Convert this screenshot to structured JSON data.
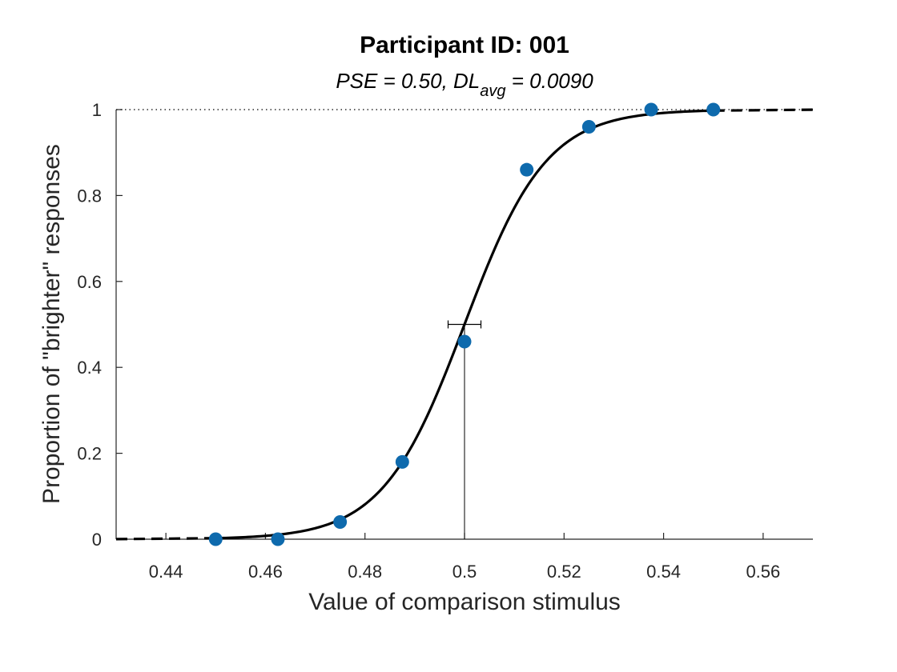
{
  "chart_data": {
    "type": "scatter",
    "title": "Participant ID: 001",
    "subtitle": {
      "prefix": "PSE = 0.50,  DL",
      "subscript": "avg",
      "suffix": " = 0.0090"
    },
    "xlabel": "Value of comparison stimulus",
    "ylabel": "Proportion of \"brighter\" responses",
    "xlim": [
      0.43,
      0.57
    ],
    "ylim": [
      0,
      1
    ],
    "xticks": [
      0.44,
      0.46,
      0.48,
      0.5,
      0.52,
      0.54,
      0.56
    ],
    "xtick_labels": [
      "0.44",
      "0.46",
      "0.48",
      "0.5",
      "0.52",
      "0.54",
      "0.56"
    ],
    "yticks": [
      0,
      0.2,
      0.4,
      0.6,
      0.8,
      1
    ],
    "ytick_labels": [
      "0",
      "0.2",
      "0.4",
      "0.6",
      "0.8",
      "1"
    ],
    "grid": false,
    "points": {
      "color": "#0e6aad",
      "x": [
        0.45,
        0.4625,
        0.475,
        0.4875,
        0.5,
        0.5125,
        0.525,
        0.5375,
        0.55
      ],
      "y": [
        0.0,
        0.0,
        0.04,
        0.18,
        0.46,
        0.86,
        0.96,
        1.0,
        1.0
      ]
    },
    "fit": {
      "pse": 0.5,
      "dl_avg": 0.009,
      "slope_scale": 0.00824,
      "color": "#000000",
      "x_range": [
        0.45,
        0.55
      ]
    },
    "pse_errorbar": {
      "x": 0.5,
      "y": 0.5,
      "low": 0.4967,
      "high": 0.5033
    },
    "reference_line_y": 1
  }
}
